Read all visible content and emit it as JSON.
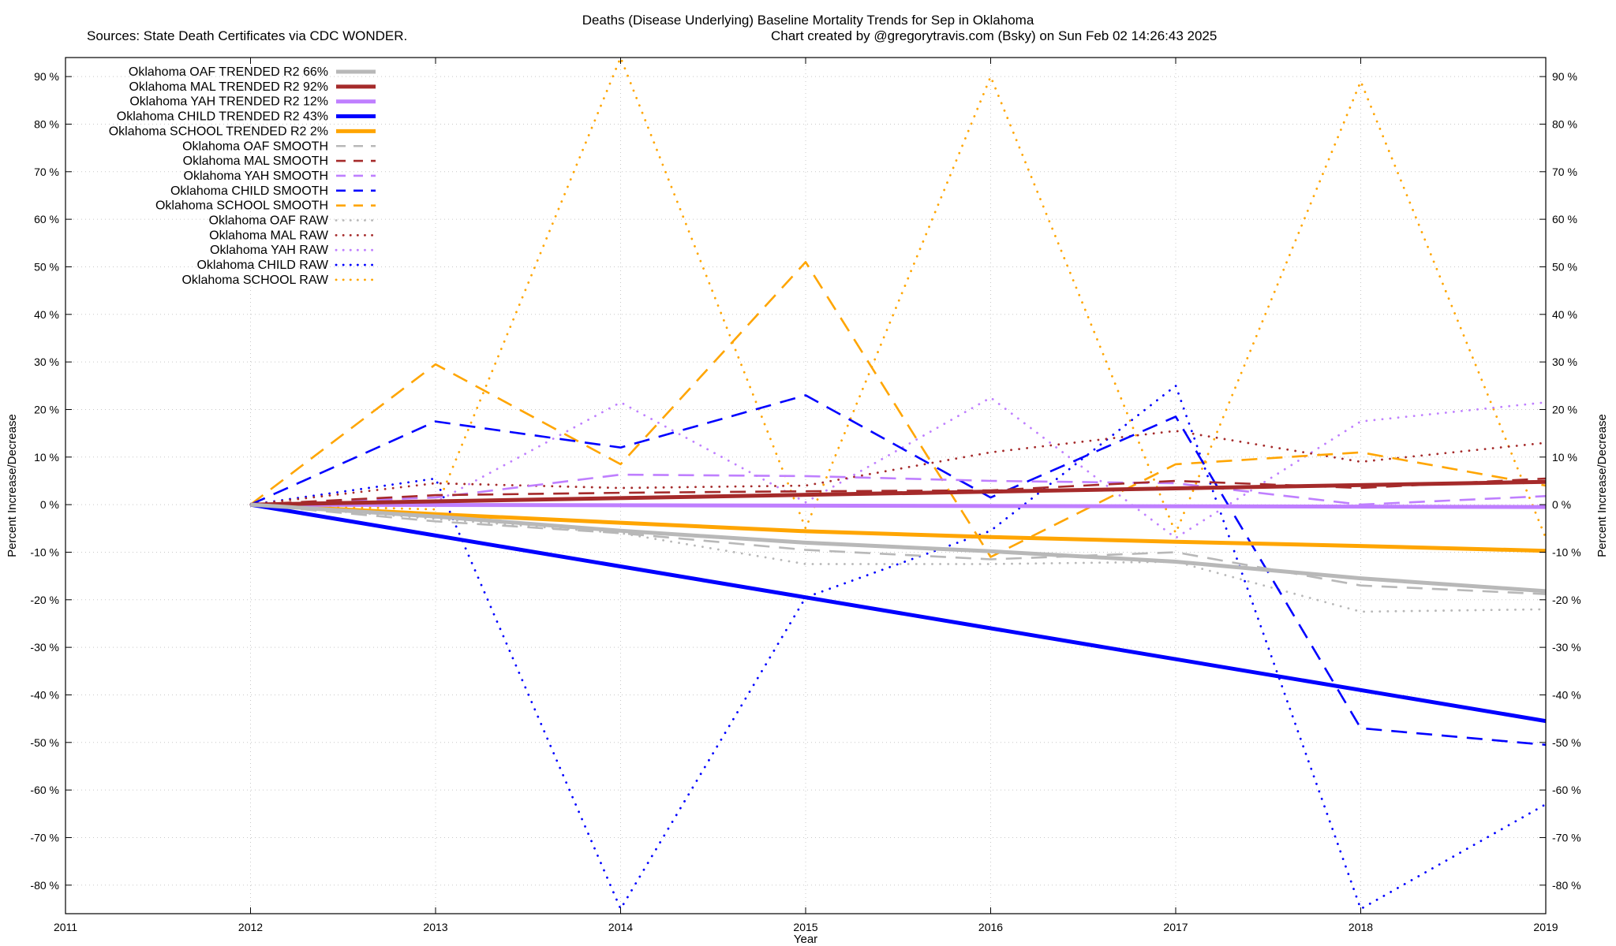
{
  "chart_data": {
    "type": "line",
    "title": "Deaths (Disease Underlying)  Baseline Mortality Trends for Sep in Oklahoma",
    "subtitle_left": "Sources: State Death Certificates via CDC WONDER.",
    "subtitle_right": "Chart created by @gregorytravis.com (Bsky) on Sun Feb 02 14:26:43 2025",
    "xlabel": "Year",
    "ylabel_left": "Percent Increase/Decrease",
    "ylabel_right": "Percent Increase/Decrease",
    "xlim": [
      2011,
      2019
    ],
    "ylim": [
      -86,
      94
    ],
    "x_ticks": [
      2011,
      2012,
      2013,
      2014,
      2015,
      2016,
      2017,
      2018,
      2019
    ],
    "y_ticks": [
      -80,
      -70,
      -60,
      -50,
      -40,
      -30,
      -20,
      -10,
      0,
      10,
      20,
      30,
      40,
      50,
      60,
      70,
      80,
      90
    ],
    "y_tick_suffix": " %",
    "grid": true,
    "legend_position": "top-left",
    "series": [
      {
        "name": "Oklahoma OAF TRENDED R2  66%",
        "style": "solid",
        "color": "#b8b8b8",
        "x": [
          2012,
          2013,
          2014,
          2015,
          2016,
          2017,
          2018,
          2019
        ],
        "y": [
          0,
          -2.5,
          -5.5,
          -8,
          -9.8,
          -12,
          -15.5,
          -18.2
        ]
      },
      {
        "name": "Oklahoma MAL TRENDED R2  92%",
        "style": "solid",
        "color": "#a52a2a",
        "x": [
          2012,
          2019
        ],
        "y": [
          0,
          4.8
        ]
      },
      {
        "name": "Oklahoma YAH TRENDED R2  12%",
        "style": "solid",
        "color": "#bf7fff",
        "x": [
          2012,
          2019
        ],
        "y": [
          0,
          -0.5
        ]
      },
      {
        "name": "Oklahoma CHILD TRENDED R2  43%",
        "style": "solid",
        "color": "#0000ff",
        "x": [
          2012,
          2019
        ],
        "y": [
          0,
          -45.5
        ]
      },
      {
        "name": "Oklahoma SCHOOL TRENDED R2  2%",
        "style": "solid",
        "color": "#ffa500",
        "x": [
          2012,
          2013,
          2014,
          2015,
          2016,
          2017,
          2018,
          2019
        ],
        "y": [
          0,
          -2,
          -3.8,
          -5.6,
          -6.8,
          -7.8,
          -8.7,
          -9.7
        ]
      },
      {
        "name": "Oklahoma OAF SMOOTH",
        "style": "dash",
        "color": "#b8b8b8",
        "x": [
          2012,
          2013,
          2014,
          2015,
          2016,
          2017,
          2018,
          2019
        ],
        "y": [
          0,
          -3.5,
          -6,
          -9.5,
          -11.5,
          -10,
          -17,
          -18.8
        ]
      },
      {
        "name": "Oklahoma MAL SMOOTH",
        "style": "dash",
        "color": "#a52a2a",
        "x": [
          2012,
          2013,
          2014,
          2015,
          2016,
          2017,
          2018,
          2019
        ],
        "y": [
          0,
          2,
          2.5,
          2.8,
          3,
          5,
          3.5,
          5.5
        ]
      },
      {
        "name": "Oklahoma YAH SMOOTH",
        "style": "dash",
        "color": "#bf7fff",
        "x": [
          2012,
          2013,
          2014,
          2015,
          2016,
          2017,
          2018,
          2019
        ],
        "y": [
          0,
          1.5,
          6.3,
          6,
          5,
          4.5,
          0,
          1.8
        ]
      },
      {
        "name": "Oklahoma CHILD SMOOTH",
        "style": "dash",
        "color": "#0000ff",
        "x": [
          2012,
          2013,
          2014,
          2015,
          2016,
          2017,
          2018,
          2019
        ],
        "y": [
          0,
          17.5,
          12,
          23,
          1.5,
          18.5,
          -47,
          -50.5
        ]
      },
      {
        "name": "Oklahoma SCHOOL SMOOTH",
        "style": "dash",
        "color": "#ffa500",
        "x": [
          2012,
          2013,
          2014,
          2015,
          2016,
          2017,
          2018,
          2019
        ],
        "y": [
          0,
          29.5,
          8.5,
          51,
          -11,
          8.5,
          11,
          4
        ]
      },
      {
        "name": "Oklahoma OAF RAW",
        "style": "dot",
        "color": "#b8b8b8",
        "x": [
          2012,
          2013,
          2014,
          2015,
          2016,
          2017,
          2018,
          2019
        ],
        "y": [
          0,
          -3,
          -6,
          -12.5,
          -12.5,
          -12,
          -22.5,
          -22
        ]
      },
      {
        "name": "Oklahoma MAL RAW",
        "style": "dot",
        "color": "#a52a2a",
        "x": [
          2012,
          2013,
          2014,
          2015,
          2016,
          2017,
          2018,
          2019
        ],
        "y": [
          0,
          4.5,
          3.5,
          4,
          11,
          15.5,
          9,
          13
        ]
      },
      {
        "name": "Oklahoma YAH RAW",
        "style": "dot",
        "color": "#bf7fff",
        "x": [
          2012,
          2013,
          2014,
          2015,
          2016,
          2017,
          2018,
          2019
        ],
        "y": [
          0,
          0.5,
          21.5,
          0.5,
          22.5,
          -7,
          17.5,
          21.5
        ]
      },
      {
        "name": "Oklahoma CHILD RAW",
        "style": "dot",
        "color": "#0000ff",
        "x": [
          2012,
          2013,
          2014,
          2015,
          2016,
          2017,
          2018,
          2019
        ],
        "y": [
          0,
          5.5,
          -85,
          -19.5,
          -5.5,
          25,
          -85,
          -63
        ]
      },
      {
        "name": "Oklahoma SCHOOL RAW",
        "style": "dot",
        "color": "#ffa500",
        "x": [
          2012,
          2013,
          2014,
          2015,
          2016,
          2017,
          2018,
          2019
        ],
        "y": [
          0,
          -1,
          94,
          -5,
          90,
          -6,
          89,
          -7
        ]
      }
    ]
  }
}
